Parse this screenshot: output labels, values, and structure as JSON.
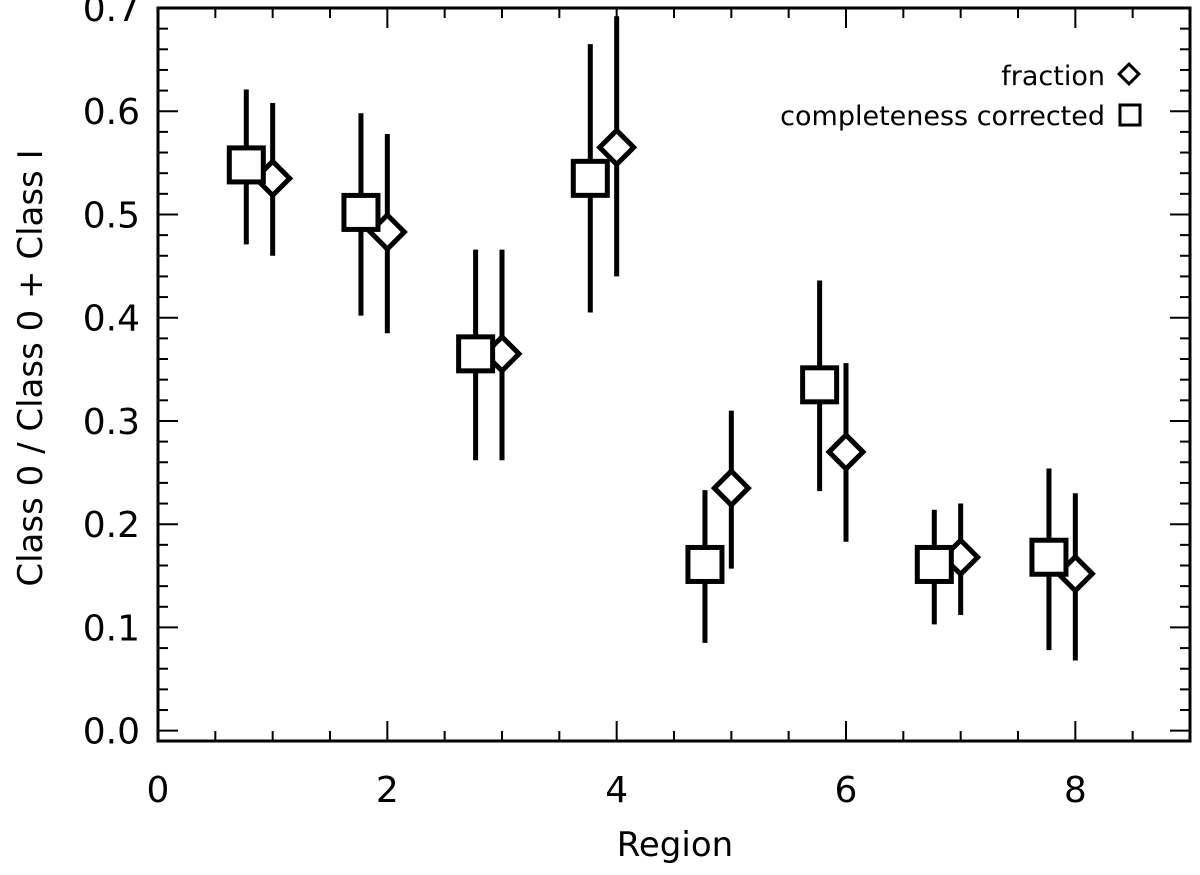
{
  "chart_data": {
    "type": "scatter",
    "xlabel": "Region",
    "ylabel": "Class 0 / Class 0 + Class I",
    "xlim": [
      0,
      9
    ],
    "ylim": [
      -0.01,
      0.7
    ],
    "xticks": [
      0,
      2,
      4,
      6,
      8
    ],
    "yticks": [
      0.0,
      0.1,
      0.2,
      0.3,
      0.4,
      0.5,
      0.6,
      0.7
    ],
    "xtick_labels": [
      "0",
      "2",
      "4",
      "6",
      "8"
    ],
    "ytick_labels": [
      "0.0",
      "0.1",
      "0.2",
      "0.3",
      "0.4",
      "0.5",
      "0.6",
      "0.7"
    ],
    "grid": false,
    "legend": {
      "placement": "top-right",
      "entries": [
        "fraction",
        "completeness corrected"
      ]
    },
    "series": [
      {
        "name": "fraction",
        "marker": "diamond",
        "x": [
          1,
          2,
          3,
          4,
          5,
          6,
          7,
          8
        ],
        "y": [
          0.535,
          0.483,
          0.365,
          0.565,
          0.235,
          0.27,
          0.168,
          0.152
        ],
        "y_low": [
          0.46,
          0.385,
          0.262,
          0.44,
          0.157,
          0.183,
          0.112,
          0.068
        ],
        "y_high": [
          0.608,
          0.578,
          0.466,
          0.692,
          0.31,
          0.356,
          0.22,
          0.23
        ]
      },
      {
        "name": "completeness corrected",
        "marker": "square",
        "x": [
          0.77,
          1.77,
          2.77,
          3.77,
          4.77,
          5.77,
          6.77,
          7.77
        ],
        "y": [
          0.548,
          0.502,
          0.365,
          0.535,
          0.161,
          0.335,
          0.161,
          0.168
        ],
        "y_low": [
          0.471,
          0.402,
          0.262,
          0.405,
          0.085,
          0.232,
          0.103,
          0.078
        ],
        "y_high": [
          0.621,
          0.598,
          0.466,
          0.665,
          0.233,
          0.436,
          0.214,
          0.254
        ]
      }
    ]
  }
}
